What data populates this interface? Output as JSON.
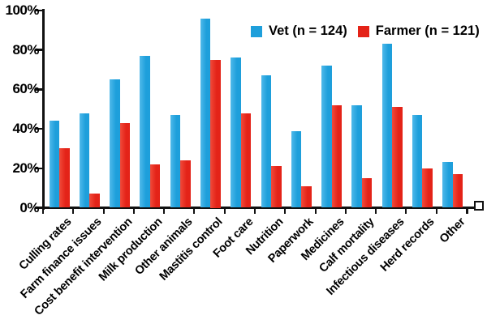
{
  "chart_data": {
    "type": "bar",
    "title": "",
    "xlabel": "",
    "ylabel": "",
    "ylim": [
      0,
      100
    ],
    "grid": false,
    "legend_position": "top-right",
    "axis_color": "#111111",
    "categories": [
      "Culling rates",
      "Farm finance issues",
      "Cost benefit intervention",
      "Milk production",
      "Other animals",
      "Mastitis control",
      "Foot care",
      "Nutrition",
      "Paperwork",
      "Medicines",
      "Calf mortality",
      "Infectious diseases",
      "Herd records",
      "Other"
    ],
    "series": [
      {
        "name": "Vet (n = 124)",
        "color": "#1E9FDB",
        "color_light": "#4FB9EA",
        "values": [
          44,
          48,
          65,
          77,
          47,
          96,
          76,
          67,
          39,
          72,
          52,
          83,
          47,
          23
        ]
      },
      {
        "name": "Farmer (n = 121)",
        "color": "#E42318",
        "color_light": "#F04B3A",
        "values": [
          30,
          7,
          43,
          22,
          24,
          75,
          48,
          21,
          11,
          52,
          15,
          51,
          20,
          17
        ]
      }
    ],
    "yticks": [
      {
        "value": 0,
        "label": "0%"
      },
      {
        "value": 20,
        "label": "20%"
      },
      {
        "value": 40,
        "label": "40%"
      },
      {
        "value": 60,
        "label": "60%"
      },
      {
        "value": 80,
        "label": "80%"
      },
      {
        "value": 100,
        "label": "100%"
      }
    ]
  }
}
